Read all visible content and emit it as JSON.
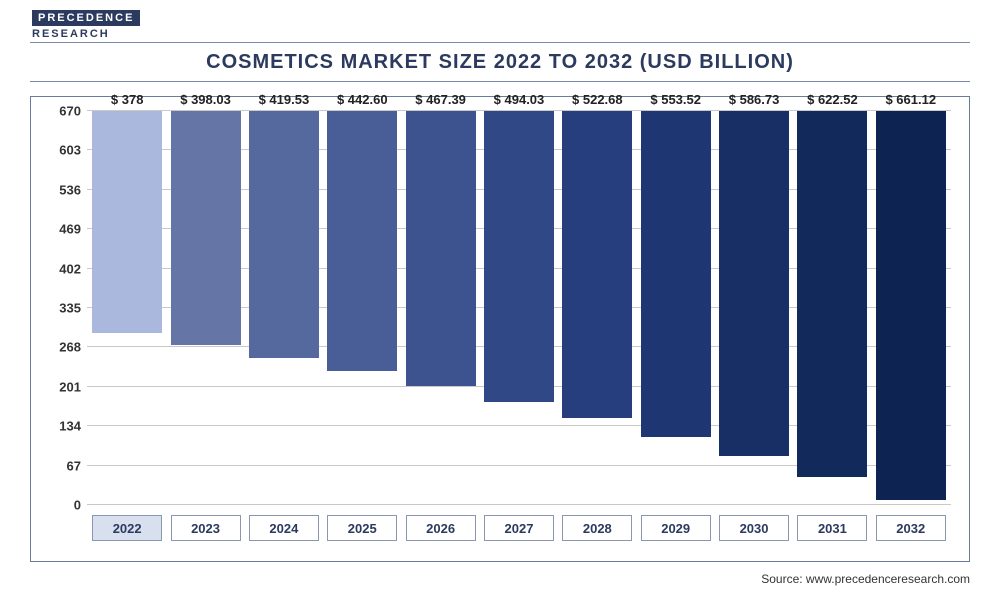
{
  "logo": {
    "line1": "PRECEDENCE",
    "line2": "RESEARCH"
  },
  "title": "COSMETICS MARKET SIZE 2022 TO 2032 (USD BILLION)",
  "source": "Source: www.precedenceresearch.com",
  "chart": {
    "type": "bar",
    "ylim": [
      0,
      670
    ],
    "ytick_step": 67,
    "yticks": [
      0,
      67,
      134,
      201,
      268,
      335,
      402,
      469,
      536,
      603,
      670
    ],
    "grid_color": "#c9c9c9",
    "background_color": "#ffffff",
    "border_color": "#6b7b9c",
    "bar_width": 0.88,
    "label_fontsize": 13,
    "title_fontsize": 20,
    "title_color": "#2b3a5e",
    "axis_font_color": "#333333",
    "value_prefix": "$ ",
    "categories": [
      "2022",
      "2023",
      "2024",
      "2025",
      "2026",
      "2027",
      "2028",
      "2029",
      "2030",
      "2031",
      "2032"
    ],
    "values": [
      378,
      398.03,
      419.53,
      442.6,
      467.39,
      494.03,
      522.68,
      553.52,
      586.73,
      622.52,
      661.12
    ],
    "value_labels": [
      "$ 378",
      "$ 398.03",
      "$ 419.53",
      "$ 442.60",
      "$ 467.39",
      "$ 494.03",
      "$ 522.68",
      "$ 553.52",
      "$ 586.73",
      "$ 622.52",
      "$ 661.12"
    ],
    "bar_colors": [
      "#aab8de",
      "#6475a6",
      "#56699e",
      "#495e97",
      "#3d538f",
      "#314886",
      "#263e7d",
      "#1e3671",
      "#182f66",
      "#12295c",
      "#0d2351"
    ],
    "highlight_index": 0,
    "xaxis_box_border": "#8b96b0",
    "xaxis_box_highlight_bg": "#d8e0f0"
  }
}
